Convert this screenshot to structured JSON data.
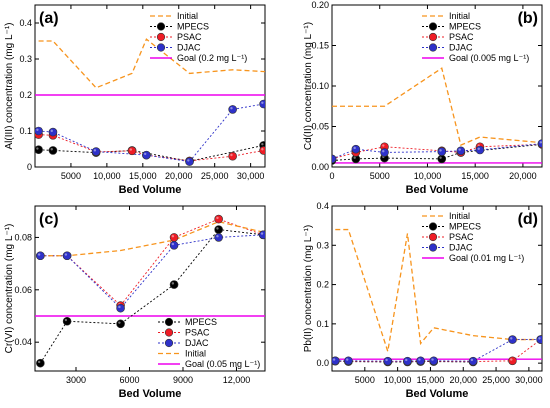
{
  "chart_data": [
    {
      "type": "line",
      "panel_label": "(a)",
      "xlabel": "Bed Volume",
      "ylabel": "Al(III) concentration (mg L⁻¹)",
      "xlim": [
        0,
        32000
      ],
      "ylim": [
        0,
        0.45
      ],
      "xticks": [
        5000,
        10000,
        15000,
        20000,
        25000,
        30000
      ],
      "xtick_labels": [
        "5000",
        "10,000",
        "15,000",
        "20,000",
        "25,000",
        "30,000"
      ],
      "yticks": [
        0,
        0.1,
        0.2,
        0.3,
        0.4
      ],
      "ytick_labels": [
        "0",
        "0.1",
        "0.2",
        "0.3",
        "0.4"
      ],
      "legend_position": "top-right",
      "goal": {
        "name": "Goal (0.2 mg L⁻¹)",
        "value": 0.2
      },
      "series": [
        {
          "name": "Initial",
          "style": "dashed",
          "color": "#f7941d",
          "x": [
            500,
            2500,
            8500,
            13500,
            15500,
            21500,
            27500,
            32000
          ],
          "y": [
            0.35,
            0.35,
            0.22,
            0.26,
            0.355,
            0.26,
            0.27,
            0.265
          ]
        },
        {
          "name": "MPECS",
          "style": "marker",
          "color": "#000000",
          "x": [
            500,
            2500,
            8500,
            13500,
            21500,
            31800
          ],
          "y": [
            0.048,
            0.046,
            0.04,
            0.046,
            0.016,
            0.06
          ]
        },
        {
          "name": "PSAC",
          "style": "marker",
          "color": "#ee1c25",
          "x": [
            500,
            2500,
            8500,
            13500,
            15500,
            21500,
            27500,
            31800
          ],
          "y": [
            0.09,
            0.088,
            0.042,
            0.045,
            0.033,
            0.017,
            0.03,
            0.046
          ]
        },
        {
          "name": "DJAC",
          "style": "marker",
          "color": "#2e31c9",
          "x": [
            500,
            2500,
            8500,
            15500,
            21500,
            27500,
            31800
          ],
          "y": [
            0.1,
            0.097,
            0.043,
            0.033,
            0.015,
            0.16,
            0.175
          ]
        }
      ]
    },
    {
      "type": "line",
      "panel_label": "(b)",
      "xlabel": "Bed Volume",
      "ylabel": "Cd(II) concentration (mg L⁻¹)",
      "xlim": [
        0,
        22000
      ],
      "ylim": [
        0,
        0.2
      ],
      "xticks": [
        0,
        5000,
        10000,
        15000,
        20000
      ],
      "xtick_labels": [
        "0",
        "5000",
        "10,000",
        "15,000",
        "20,000"
      ],
      "yticks": [
        0,
        0.05,
        0.1,
        0.15,
        0.2
      ],
      "ytick_labels": [
        "0.00",
        "0.05",
        "0.10",
        "0.15",
        "0.20"
      ],
      "legend_position": "top-right",
      "goal": {
        "name": "Goal (0.005 mg L⁻¹)",
        "value": 0.005
      },
      "series": [
        {
          "name": "Initial",
          "style": "dashed",
          "color": "#f7941d",
          "x": [
            0,
            5500,
            11500,
            13500,
            15500,
            22000
          ],
          "y": [
            0.075,
            0.075,
            0.122,
            0.027,
            0.037,
            0.03
          ]
        },
        {
          "name": "MPECS",
          "style": "marker",
          "color": "#000000",
          "x": [
            0,
            2500,
            5500,
            11500,
            13500,
            22000
          ],
          "y": [
            0.008,
            0.01,
            0.011,
            0.01,
            0.018,
            0.028
          ]
        },
        {
          "name": "PSAC",
          "style": "marker",
          "color": "#ee1c25",
          "x": [
            0,
            2500,
            5500,
            11500,
            13500,
            15500,
            22000
          ],
          "y": [
            0.01,
            0.018,
            0.025,
            0.02,
            0.018,
            0.025,
            0.028
          ]
        },
        {
          "name": "DJAC",
          "style": "marker",
          "color": "#2e31c9",
          "x": [
            0,
            2500,
            5500,
            11500,
            13500,
            15500,
            22000
          ],
          "y": [
            0.01,
            0.022,
            0.018,
            0.019,
            0.02,
            0.021,
            0.029
          ]
        }
      ]
    },
    {
      "type": "line",
      "panel_label": "(c)",
      "xlabel": "Bed Volume",
      "ylabel": "Cr(VI) concentration (mg L⁻¹)",
      "xlim": [
        700,
        13600
      ],
      "ylim": [
        0.029,
        0.092
      ],
      "xticks": [
        3000,
        6000,
        9000,
        12000
      ],
      "xtick_labels": [
        "3000",
        "6000",
        "9000",
        "12,000"
      ],
      "yticks": [
        0.04,
        0.06,
        0.08
      ],
      "ytick_labels": [
        "0.04",
        "0.06",
        "0.08"
      ],
      "legend_position": "bottom-center",
      "goal": {
        "name": "Goal (0.05 mg L⁻¹)",
        "value": 0.05
      },
      "series": [
        {
          "name": "MPECS",
          "style": "marker",
          "color": "#000000",
          "x": [
            1000,
            2500,
            5500,
            8500,
            11000,
            13500
          ],
          "y": [
            0.032,
            0.048,
            0.047,
            0.062,
            0.083,
            0.081
          ]
        },
        {
          "name": "PSAC",
          "style": "marker",
          "color": "#ee1c25",
          "x": [
            1000,
            2500,
            5500,
            8500,
            11000,
            13500
          ],
          "y": [
            0.073,
            0.073,
            0.054,
            0.08,
            0.087,
            0.081
          ]
        },
        {
          "name": "DJAC",
          "style": "marker",
          "color": "#2e31c9",
          "x": [
            1000,
            2500,
            5500,
            8500,
            11000,
            13500
          ],
          "y": [
            0.073,
            0.073,
            0.053,
            0.077,
            0.08,
            0.081
          ]
        },
        {
          "name": "Initial",
          "style": "dashed",
          "color": "#f7941d",
          "x": [
            1000,
            2500,
            5500,
            8500,
            11000,
            13500
          ],
          "y": [
            0.073,
            0.073,
            0.075,
            0.079,
            0.086,
            0.082
          ]
        }
      ]
    },
    {
      "type": "line",
      "panel_label": "(d)",
      "xlabel": "Bed Volume",
      "ylabel": "Pb(II) concentration (mg L⁻¹)",
      "xlim": [
        0,
        32000
      ],
      "ylim": [
        -0.02,
        0.4
      ],
      "xticks": [
        5000,
        10000,
        15000,
        20000,
        25000,
        30000
      ],
      "xtick_labels": [
        "5000",
        "10,000",
        "15,000",
        "20,000",
        "25,000",
        "30,000"
      ],
      "yticks": [
        0,
        0.1,
        0.2,
        0.3,
        0.4
      ],
      "ytick_labels": [
        "0.0",
        "0.1",
        "0.2",
        "0.3",
        "0.4"
      ],
      "legend_position": "top-right",
      "goal": {
        "name": "Goal (0.01 mg L⁻¹)",
        "value": 0.01
      },
      "series": [
        {
          "name": "Initial",
          "style": "dashed",
          "color": "#f7941d",
          "x": [
            500,
            2500,
            8500,
            11500,
            13500,
            15500,
            21500,
            27500,
            32000
          ],
          "y": [
            0.34,
            0.34,
            0.03,
            0.33,
            0.05,
            0.09,
            0.07,
            0.06,
            0.06
          ]
        },
        {
          "name": "MPECS",
          "style": "marker",
          "color": "#000000",
          "x": [
            500,
            2500,
            8500,
            11500,
            13500,
            15500,
            21500
          ],
          "y": [
            0.005,
            0.004,
            0.003,
            0.003,
            0.004,
            0.004,
            0.003
          ]
        },
        {
          "name": "PSAC",
          "style": "marker",
          "color": "#ee1c25",
          "x": [
            500,
            2500,
            8500,
            11500,
            13500,
            15500,
            21500,
            27500,
            31800
          ],
          "y": [
            0.006,
            0.005,
            0.004,
            0.004,
            0.005,
            0.005,
            0.004,
            0.006,
            0.06
          ]
        },
        {
          "name": "DJAC",
          "style": "marker",
          "color": "#2e31c9",
          "x": [
            500,
            2500,
            8500,
            11500,
            13500,
            15500,
            21500,
            27500,
            31800
          ],
          "y": [
            0.006,
            0.006,
            0.005,
            0.005,
            0.006,
            0.006,
            0.005,
            0.06,
            0.06
          ]
        }
      ]
    }
  ]
}
